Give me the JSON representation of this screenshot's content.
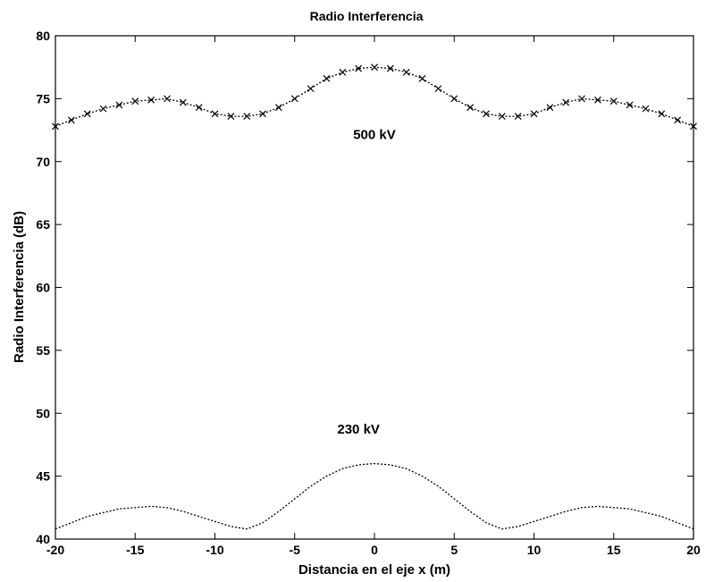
{
  "chart_data": {
    "type": "line",
    "title": "Radio Interferencia",
    "xlabel": "Distancia en el eje x (m)",
    "ylabel": "Radio Interferencia (dB)",
    "xlim": [
      -20,
      20
    ],
    "ylim": [
      40,
      80
    ],
    "xticks": [
      -20,
      -15,
      -10,
      -5,
      0,
      5,
      10,
      15,
      20
    ],
    "yticks": [
      40,
      45,
      50,
      55,
      60,
      65,
      70,
      75,
      80
    ],
    "grid": false,
    "annotations": [
      {
        "text": "500 kV",
        "x": 0,
        "y": 71.8
      },
      {
        "text": "230 kV",
        "x": -1,
        "y": 48.4
      }
    ],
    "series": [
      {
        "marker": "x",
        "x": [
          -20,
          -19,
          -18,
          -17,
          -16,
          -15,
          -14,
          -13,
          -12,
          -11,
          -10,
          -9,
          -8,
          -7,
          -6,
          -5,
          -4,
          -3,
          -2,
          -1,
          0,
          1,
          2,
          3,
          4,
          5,
          6,
          7,
          8,
          9,
          10,
          11,
          12,
          13,
          14,
          15,
          16,
          17,
          18,
          19,
          20
        ],
        "y": [
          72.8,
          73.3,
          73.8,
          74.2,
          74.5,
          74.8,
          74.9,
          75.0,
          74.7,
          74.3,
          73.8,
          73.6,
          73.6,
          73.8,
          74.3,
          75.0,
          75.8,
          76.6,
          77.1,
          77.4,
          77.5,
          77.4,
          77.1,
          76.6,
          75.8,
          75.0,
          74.3,
          73.8,
          73.6,
          73.6,
          73.8,
          74.3,
          74.7,
          75.0,
          74.9,
          74.8,
          74.5,
          74.2,
          73.8,
          73.3,
          72.8
        ]
      },
      {
        "marker": "none",
        "x": [
          -20,
          -19,
          -18,
          -17,
          -16,
          -15,
          -14,
          -13,
          -12,
          -11,
          -10,
          -9,
          -8,
          -7,
          -6,
          -5,
          -4,
          -3,
          -2,
          -1,
          0,
          1,
          2,
          3,
          4,
          5,
          6,
          7,
          8,
          9,
          10,
          11,
          12,
          13,
          14,
          15,
          16,
          17,
          18,
          19,
          20
        ],
        "y": [
          40.8,
          41.3,
          41.8,
          42.1,
          42.4,
          42.5,
          42.6,
          42.5,
          42.2,
          41.8,
          41.4,
          41.0,
          40.8,
          41.3,
          42.2,
          43.2,
          44.2,
          45.0,
          45.6,
          45.9,
          46.0,
          45.9,
          45.6,
          45.0,
          44.2,
          43.2,
          42.2,
          41.3,
          40.8,
          41.0,
          41.4,
          41.8,
          42.2,
          42.5,
          42.6,
          42.5,
          42.4,
          42.1,
          41.8,
          41.3,
          40.8
        ]
      }
    ]
  }
}
